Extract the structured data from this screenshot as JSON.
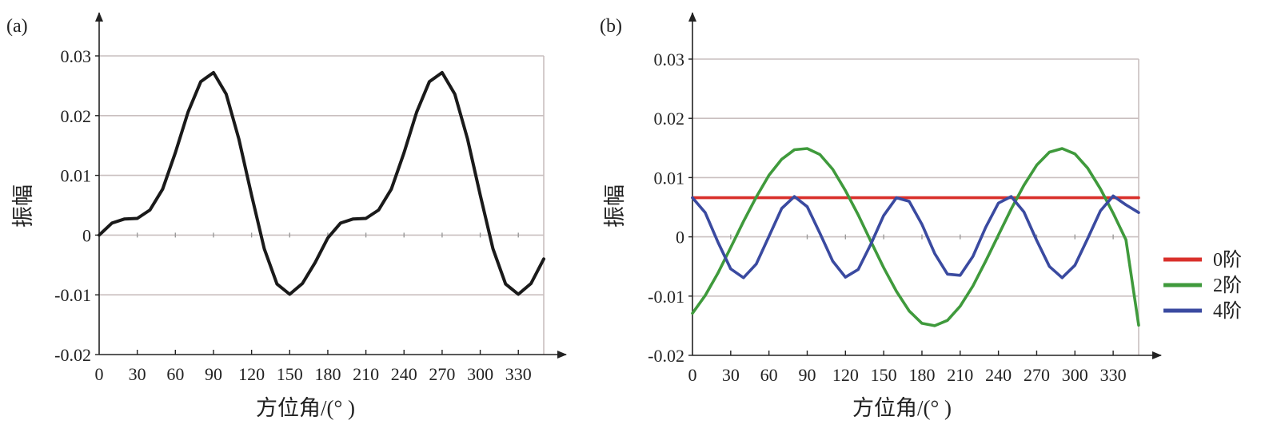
{
  "chart_data": [
    {
      "panel_label": "(a)",
      "type": "line",
      "xlabel": "方位角/(°  )",
      "ylabel": "振幅",
      "xlim": [
        0,
        350
      ],
      "ylim": [
        -0.02,
        0.03
      ],
      "x_ticks": [
        0,
        30,
        60,
        90,
        120,
        150,
        180,
        210,
        240,
        270,
        300,
        330
      ],
      "y_ticks": [
        -0.02,
        -0.01,
        0,
        0.01,
        0.02,
        0.03
      ],
      "y_tick_labels": [
        "-0.02",
        "-0.01",
        "0",
        "0.01",
        "0.02",
        "0.03"
      ],
      "grid": "horizontal",
      "series": [
        {
          "color": "#1a1a1a",
          "x": [
            0,
            10,
            20,
            30,
            40,
            50,
            60,
            70,
            80,
            90,
            100,
            110,
            120,
            130,
            140,
            150,
            160,
            170,
            180,
            190,
            200,
            210,
            220,
            230,
            240,
            250,
            260,
            270,
            280,
            290,
            300,
            310,
            320,
            330,
            340,
            350
          ],
          "y": [
            0,
            0.002,
            0.0027,
            0.0028,
            0.0042,
            0.0077,
            0.0138,
            0.0206,
            0.0257,
            0.0272,
            0.0236,
            0.0161,
            0.0067,
            -0.0023,
            -0.0082,
            -0.0099,
            -0.0081,
            -0.0046,
            -0.0005,
            0.002,
            0.0027,
            0.0028,
            0.0042,
            0.0077,
            0.0138,
            0.0206,
            0.0257,
            0.0272,
            0.0236,
            0.0161,
            0.0067,
            -0.0023,
            -0.0082,
            -0.0099,
            -0.0081,
            -0.004
          ]
        }
      ]
    },
    {
      "panel_label": "(b)",
      "type": "line",
      "xlabel": "方位角/(°  )",
      "ylabel": "振幅",
      "xlim": [
        0,
        350
      ],
      "ylim": [
        -0.02,
        0.03
      ],
      "x_ticks": [
        0,
        30,
        60,
        90,
        120,
        150,
        180,
        210,
        240,
        270,
        300,
        330
      ],
      "y_ticks": [
        -0.02,
        -0.01,
        0,
        0.01,
        0.02,
        0.03
      ],
      "y_tick_labels": [
        "-0.02",
        "-0.01",
        "0",
        "0.01",
        "0.02",
        "0.03"
      ],
      "grid": "horizontal",
      "legend_position": "right",
      "series": [
        {
          "name": "0阶",
          "color": "#d9302b",
          "x": [
            0,
            10,
            20,
            30,
            40,
            50,
            60,
            70,
            80,
            90,
            100,
            110,
            120,
            130,
            140,
            150,
            160,
            170,
            180,
            190,
            200,
            210,
            220,
            230,
            240,
            250,
            260,
            270,
            280,
            290,
            300,
            310,
            320,
            330,
            340,
            350
          ],
          "y": [
            0.0066,
            0.0066,
            0.0066,
            0.0066,
            0.0066,
            0.0066,
            0.0066,
            0.0066,
            0.0066,
            0.0066,
            0.0066,
            0.0066,
            0.0066,
            0.0066,
            0.0066,
            0.0066,
            0.0066,
            0.0066,
            0.0066,
            0.0066,
            0.0066,
            0.0066,
            0.0066,
            0.0066,
            0.0066,
            0.0066,
            0.0066,
            0.0066,
            0.0066,
            0.0066,
            0.0066,
            0.0066,
            0.0066,
            0.0066,
            0.0066,
            0.0066
          ]
        },
        {
          "name": "2阶",
          "color": "#3f9a3c",
          "x": [
            0,
            10,
            20,
            30,
            40,
            50,
            60,
            70,
            80,
            90,
            100,
            110,
            120,
            130,
            140,
            150,
            160,
            170,
            180,
            190,
            200,
            210,
            220,
            230,
            240,
            250,
            260,
            270,
            280,
            290,
            300,
            310,
            320,
            330,
            340,
            350
          ],
          "y": [
            -0.0129,
            -0.0099,
            -0.0061,
            -0.0018,
            0.0026,
            0.0067,
            0.0104,
            0.0131,
            0.0147,
            0.0149,
            0.0139,
            0.0114,
            0.0078,
            0.0037,
            -0.0008,
            -0.0052,
            -0.0092,
            -0.0125,
            -0.0146,
            -0.015,
            -0.0141,
            -0.0117,
            -0.0083,
            -0.0041,
            0.0003,
            0.0047,
            0.0087,
            0.0121,
            0.0143,
            0.0149,
            0.014,
            0.0116,
            0.0081,
            0.004,
            -0.0005,
            -0.0149
          ]
        },
        {
          "name": "4阶",
          "color": "#3a4aa0",
          "x": [
            0,
            10,
            20,
            30,
            40,
            50,
            60,
            70,
            80,
            90,
            100,
            110,
            120,
            130,
            140,
            150,
            160,
            170,
            180,
            190,
            200,
            210,
            220,
            230,
            240,
            250,
            260,
            270,
            280,
            290,
            300,
            310,
            320,
            330,
            340,
            350
          ],
          "y": [
            0.0066,
            0.0041,
            -0.0009,
            -0.0054,
            -0.0069,
            -0.0046,
            0.0001,
            0.0048,
            0.0068,
            0.0051,
            0.0006,
            -0.0041,
            -0.0068,
            -0.0055,
            -0.0012,
            0.0036,
            0.0066,
            0.006,
            0.0021,
            -0.0028,
            -0.0063,
            -0.0065,
            -0.0033,
            0.0016,
            0.0057,
            0.0068,
            0.0042,
            -0.0006,
            -0.005,
            -0.0069,
            -0.0048,
            -0.0003,
            0.0044,
            0.0069,
            0.0054,
            0.0041
          ]
        }
      ]
    }
  ]
}
